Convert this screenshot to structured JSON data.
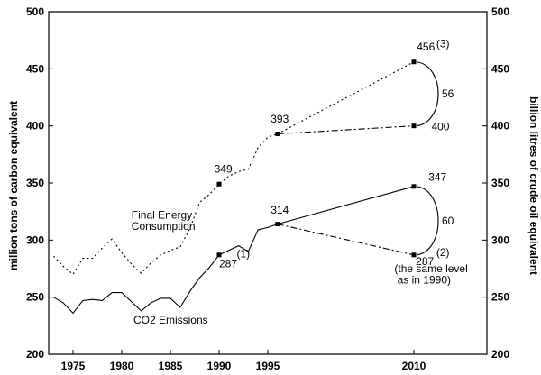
{
  "chart_data": {
    "type": "line",
    "ylabel_left": "million tons of carbon equivalent",
    "ylabel_right": "billion litres of crude oil equivalent",
    "ylim": [
      200,
      500
    ],
    "yticks": [
      200,
      250,
      300,
      350,
      400,
      450,
      500
    ],
    "xlim": [
      1972.5,
      2017.5
    ],
    "xticks": [
      1975,
      1980,
      1985,
      1990,
      1995,
      2010
    ],
    "series": [
      {
        "name": "Final Energy Consumption",
        "style": "dotted",
        "x": [
          1973,
          1974,
          1975,
          1976,
          1977,
          1978,
          1979,
          1980,
          1981,
          1982,
          1983,
          1984,
          1985,
          1986,
          1987,
          1988,
          1989,
          1990,
          1991,
          1992,
          1993,
          1994,
          1995,
          1996
        ],
        "y": [
          286,
          277,
          270,
          284,
          284,
          293,
          301,
          289,
          279,
          271,
          280,
          287,
          291,
          294,
          310,
          333,
          340,
          349,
          356,
          360,
          362,
          381,
          390,
          393
        ]
      },
      {
        "name": "CO2 Emissions",
        "style": "solid",
        "x": [
          1973,
          1974,
          1975,
          1976,
          1977,
          1978,
          1979,
          1980,
          1981,
          1982,
          1983,
          1984,
          1985,
          1986,
          1987,
          1988,
          1989,
          1990,
          1991,
          1992,
          1993,
          1994,
          1995,
          1996
        ],
        "y": [
          250,
          245,
          236,
          247,
          248,
          247,
          254,
          254,
          246,
          238,
          245,
          249,
          249,
          241,
          255,
          267,
          276,
          287,
          291,
          295,
          290,
          309,
          311,
          314
        ]
      }
    ],
    "projections": [
      {
        "from": [
          1996,
          393
        ],
        "to": [
          2010,
          456
        ],
        "style": "dotted"
      },
      {
        "from": [
          1996,
          393
        ],
        "to": [
          2010,
          400
        ],
        "style": "dashdot"
      },
      {
        "from": [
          1996,
          314
        ],
        "to": [
          2010,
          347
        ],
        "style": "solid"
      },
      {
        "from": [
          1996,
          314
        ],
        "to": [
          2010,
          287
        ],
        "style": "dashdot"
      }
    ],
    "markers": [
      {
        "x": 1990,
        "y": 349
      },
      {
        "x": 1990,
        "y": 287
      },
      {
        "x": 1996,
        "y": 393
      },
      {
        "x": 1996,
        "y": 314
      },
      {
        "x": 2010,
        "y": 456
      },
      {
        "x": 2010,
        "y": 400
      },
      {
        "x": 2010,
        "y": 347
      },
      {
        "x": 2010,
        "y": 287
      }
    ],
    "brackets": [
      {
        "from": [
          2010,
          456
        ],
        "to": [
          2010,
          400
        ],
        "label": "56"
      },
      {
        "from": [
          2010,
          347
        ],
        "to": [
          2010,
          287
        ],
        "label": "60"
      }
    ],
    "annotations": [
      {
        "text": "349",
        "x": 1989.5,
        "y": 359
      },
      {
        "text": "287",
        "x": 1990,
        "y": 276
      },
      {
        "text": "(1)",
        "x": 1991.8,
        "y": 285
      },
      {
        "text": "393",
        "x": 1995.3,
        "y": 403
      },
      {
        "text": "314",
        "x": 1995.3,
        "y": 323
      },
      {
        "text": "456",
        "x": 2010.3,
        "y": 466
      },
      {
        "text": "(3)",
        "x": 2012.3,
        "y": 469
      },
      {
        "text": "400",
        "x": 2011.8,
        "y": 396
      },
      {
        "text": "347",
        "x": 2011.5,
        "y": 352
      },
      {
        "text": "287",
        "x": 2010.2,
        "y": 278
      },
      {
        "text": "(2)",
        "x": 2012.3,
        "y": 286
      },
      {
        "text": "(the same level",
        "x": 2008.0,
        "y": 272
      },
      {
        "text": "as in 1990)",
        "x": 2008.3,
        "y": 262
      },
      {
        "text": "Final Energy",
        "x": 1981,
        "y": 319
      },
      {
        "text": "Consumption",
        "x": 1981,
        "y": 309
      },
      {
        "text": "CO2 Emissions",
        "x": 1981.2,
        "y": 227
      }
    ]
  }
}
